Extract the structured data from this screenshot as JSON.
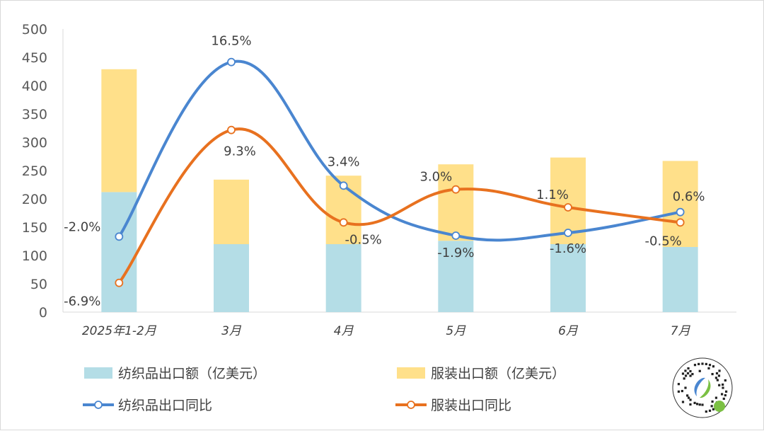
{
  "chart_data": {
    "type": "bar",
    "stacked": true,
    "categories": [
      "2025年1-2月",
      "3月",
      "4月",
      "5月",
      "6月",
      "7月"
    ],
    "y_axis": {
      "ylim": [
        0,
        500
      ],
      "ticks": [
        0,
        50,
        100,
        150,
        200,
        250,
        300,
        350,
        400,
        450,
        500
      ]
    },
    "grid": false,
    "legend_placement": "bottom",
    "bar_series": [
      {
        "name": "纺织品出口额（亿美元）",
        "color": "#b4dde6",
        "values": [
          212,
          120,
          120,
          126,
          120,
          115
        ]
      },
      {
        "name": "服装出口额（亿美元）",
        "color": "#ffe08a",
        "values": [
          217,
          114,
          121,
          135,
          153,
          152
        ]
      }
    ],
    "line_series": [
      {
        "name": "纺织品出口同比",
        "color": "#4a86d0",
        "values": [
          -2.0,
          16.5,
          3.4,
          -1.9,
          -1.6,
          0.6
        ],
        "labels": [
          "-2.0%",
          "16.5%",
          "3.4%",
          "-1.9%",
          "-1.6%",
          "0.6%"
        ]
      },
      {
        "name": "服装出口同比",
        "color": "#e8711f",
        "values": [
          -6.9,
          9.3,
          -0.5,
          3.0,
          1.1,
          -0.5
        ],
        "labels": [
          "-6.9%",
          "9.3%",
          "-0.5%",
          "3.0%",
          "1.1%",
          "-0.5%"
        ]
      }
    ]
  },
  "logo": {
    "icon": "qr-code-logo-icon"
  }
}
